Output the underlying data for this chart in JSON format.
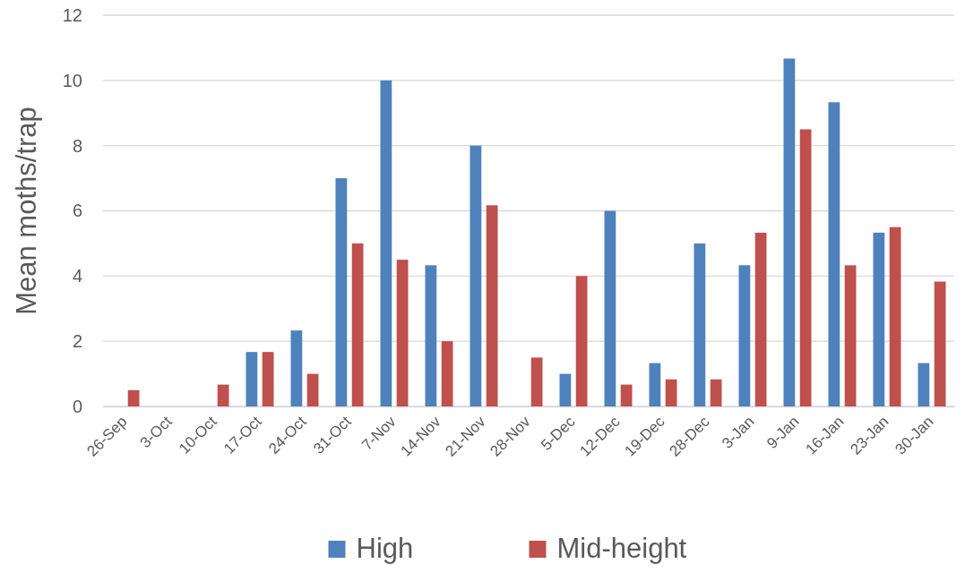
{
  "chart_data": {
    "type": "bar",
    "ylabel": "Mean moths/trap",
    "categories": [
      "26-Sep",
      "3-Oct",
      "10-Oct",
      "17-Oct",
      "24-Oct",
      "31-Oct",
      "7-Nov",
      "14-Nov",
      "21-Nov",
      "28-Nov",
      "5-Dec",
      "12-Dec",
      "19-Dec",
      "28-Dec",
      "3-Jan",
      "9-Jan",
      "16-Jan",
      "23-Jan",
      "30-Jan"
    ],
    "series": [
      {
        "name": "High",
        "color": "#4f81bd",
        "values": [
          0,
          0,
          0,
          1.67,
          2.33,
          7,
          10,
          4.33,
          8,
          0,
          1,
          6,
          1.33,
          5,
          4.33,
          10.67,
          9.33,
          5.33,
          1.33
        ]
      },
      {
        "name": "Mid-height",
        "color": "#c0504d",
        "values": [
          0.5,
          0,
          0.67,
          1.67,
          1,
          5,
          4.5,
          2,
          6.17,
          1.5,
          4,
          0.67,
          0.83,
          0.83,
          5.33,
          8.5,
          4.33,
          5.5,
          3.83
        ]
      }
    ],
    "ylim": [
      0,
      12
    ],
    "yticks": [
      0,
      2,
      4,
      6,
      8,
      10,
      12
    ],
    "grid": "y",
    "legend": "bottom"
  }
}
